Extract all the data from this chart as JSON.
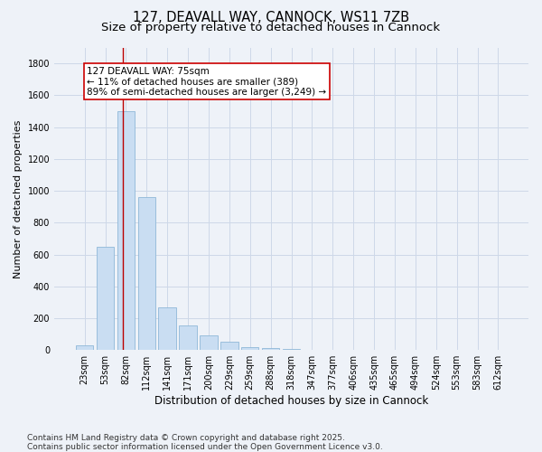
{
  "title_line1": "127, DEAVALL WAY, CANNOCK, WS11 7ZB",
  "title_line2": "Size of property relative to detached houses in Cannock",
  "xlabel": "Distribution of detached houses by size in Cannock",
  "ylabel": "Number of detached properties",
  "categories": [
    "23sqm",
    "53sqm",
    "82sqm",
    "112sqm",
    "141sqm",
    "171sqm",
    "200sqm",
    "229sqm",
    "259sqm",
    "288sqm",
    "318sqm",
    "347sqm",
    "377sqm",
    "406sqm",
    "435sqm",
    "465sqm",
    "494sqm",
    "524sqm",
    "553sqm",
    "583sqm",
    "612sqm"
  ],
  "values": [
    30,
    650,
    1500,
    960,
    270,
    155,
    90,
    55,
    20,
    10,
    5,
    3,
    3,
    2,
    1,
    0,
    0,
    0,
    0,
    0,
    0
  ],
  "bar_color": "#c9ddf2",
  "bar_edge_color": "#8fb8d8",
  "grid_color": "#cdd8e8",
  "background_color": "#eef2f8",
  "vline_color": "#bb0000",
  "vline_x_index": 1.85,
  "annotation_text": "127 DEAVALL WAY: 75sqm\n← 11% of detached houses are smaller (389)\n89% of semi-detached houses are larger (3,249) →",
  "annotation_box_facecolor": "#ffffff",
  "annotation_box_edgecolor": "#cc0000",
  "ylim": [
    0,
    1900
  ],
  "yticks": [
    0,
    200,
    400,
    600,
    800,
    1000,
    1200,
    1400,
    1600,
    1800
  ],
  "footer_line1": "Contains HM Land Registry data © Crown copyright and database right 2025.",
  "footer_line2": "Contains public sector information licensed under the Open Government Licence v3.0.",
  "title_fontsize": 10.5,
  "subtitle_fontsize": 9.5,
  "axis_label_fontsize": 8.5,
  "tick_fontsize": 7,
  "annotation_fontsize": 7.5,
  "footer_fontsize": 6.5,
  "ylabel_fontsize": 8
}
